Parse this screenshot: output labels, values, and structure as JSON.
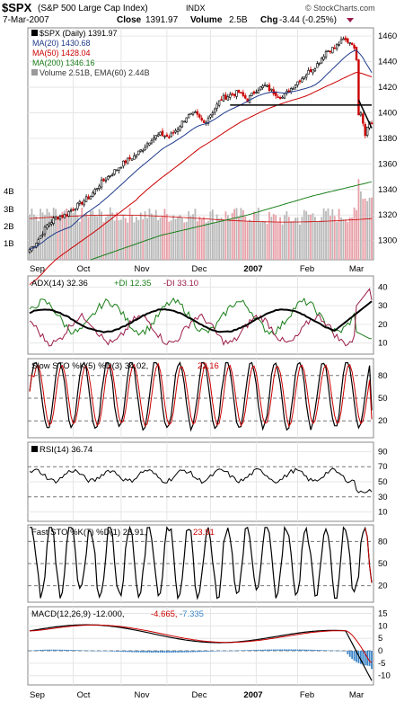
{
  "header": {
    "symbol": "$SPX",
    "name": "(S&P 500 Large Cap Index)",
    "exchange": "INDX",
    "brand": "© StockCharts.com",
    "date": "7-Mar-2007",
    "close_label": "Close",
    "close": "1391.97",
    "volume_label": "Volume",
    "volume": "2.5B",
    "chg_label": "Chg",
    "chg": "-3.44 (-0.25%)"
  },
  "colors": {
    "price": "#000000",
    "up": "#000000",
    "down": "#cc0000",
    "ma20": "#1f3a8a",
    "ma50": "#cc0000",
    "ma200": "#1a7f1a",
    "vol_up": "#b9b9b9",
    "vol_down": "#e8a0a8",
    "grid": "#e6e6e6",
    "histogram": "#3a84c7",
    "plus_di": "#1a7f1a",
    "minus_di": "#9b1b4a"
  },
  "x_axis": [
    "Sep",
    "Oct",
    "Nov",
    "Dec",
    "2007",
    "Feb",
    "Mar"
  ],
  "panels": {
    "adx": {
      "legend_prefix": "ADX(14) 32.36",
      "legend_plus": "+DI 12.35",
      "legend_minus": "-DI 33.10"
    },
    "slow_sto": {
      "legend_prefix": "Slow STO %K(5) %D(3) 34.02,",
      "legend_value": "22.16"
    },
    "rsi": {
      "legend": "RSI(14) 36.74"
    },
    "fast_sto": {
      "legend_prefix": "Fast STO %K(7) %D(1) 23.91,",
      "legend_value": "23.91"
    },
    "macd": {
      "legend_prefix": "MACD(12,26,9) -12.000,",
      "legend_signal": "-4.665,",
      "legend_hist": "-7.335"
    }
  },
  "chart_data": [
    {
      "type": "candlestick",
      "title": "$SPX (Daily) 1391.97",
      "legend": [
        {
          "name": "$SPX (Daily) 1391.97"
        },
        {
          "name": "MA(20) 1430.68"
        },
        {
          "name": "MA(50) 1428.04"
        },
        {
          "name": "MA(200) 1346.16"
        },
        {
          "name": "Volume 2.51B, EMA(60) 2.44B"
        }
      ],
      "ylim": [
        1285,
        1465
      ],
      "y_ticks": [
        1300,
        1320,
        1340,
        1360,
        1380,
        1400,
        1420,
        1440,
        1460
      ],
      "volume_ticks": [
        "1B",
        "2B",
        "3B",
        "4B"
      ],
      "close_path": [
        [
          0,
          1293
        ],
        [
          4,
          1301
        ],
        [
          8,
          1312
        ],
        [
          12,
          1318
        ],
        [
          16,
          1320
        ],
        [
          20,
          1325
        ],
        [
          24,
          1330
        ],
        [
          28,
          1335
        ],
        [
          32,
          1344
        ],
        [
          36,
          1350
        ],
        [
          40,
          1356
        ],
        [
          44,
          1362
        ],
        [
          48,
          1366
        ],
        [
          52,
          1372
        ],
        [
          56,
          1380
        ],
        [
          60,
          1383
        ],
        [
          64,
          1381
        ],
        [
          68,
          1388
        ],
        [
          72,
          1397
        ],
        [
          76,
          1399
        ],
        [
          80,
          1392
        ],
        [
          84,
          1401
        ],
        [
          88,
          1411
        ],
        [
          92,
          1414
        ],
        [
          96,
          1416
        ],
        [
          100,
          1410
        ],
        [
          104,
          1418
        ],
        [
          108,
          1421
        ],
        [
          112,
          1416
        ],
        [
          116,
          1412
        ],
        [
          120,
          1419
        ],
        [
          124,
          1426
        ],
        [
          128,
          1432
        ],
        [
          132,
          1438
        ],
        [
          136,
          1448
        ],
        [
          140,
          1451
        ],
        [
          144,
          1457
        ],
        [
          148,
          1455
        ],
        [
          150,
          1443
        ],
        [
          151,
          1400
        ],
        [
          152,
          1401
        ],
        [
          154,
          1384
        ],
        [
          156,
          1393
        ],
        [
          157,
          1392
        ]
      ],
      "trendline_horizontal": 1406,
      "trendline_down": [
        [
          151,
          1410
        ],
        [
          157,
          1388
        ]
      ],
      "ma200_path": [
        [
          28,
          1285
        ],
        [
          60,
          1304
        ],
        [
          100,
          1320
        ],
        [
          130,
          1335
        ],
        [
          157,
          1346
        ]
      ]
    },
    {
      "type": "line",
      "name": "ADX(14)",
      "ylim": [
        5,
        45
      ],
      "y_ticks": [
        10,
        20,
        30,
        40
      ],
      "values": {
        "adx": 32.36,
        "plus_di": 12.35,
        "minus_di": 33.1
      }
    },
    {
      "type": "line",
      "name": "Slow STO",
      "ylim": [
        0,
        100
      ],
      "y_ticks": [
        20,
        50,
        80
      ],
      "values": {
        "k": 34.02,
        "d": 22.16
      }
    },
    {
      "type": "line",
      "name": "RSI(14)",
      "ylim": [
        0,
        100
      ],
      "y_ticks": [
        10,
        30,
        50,
        70,
        90
      ],
      "values": {
        "rsi": 36.74
      }
    },
    {
      "type": "line",
      "name": "Fast STO",
      "ylim": [
        0,
        100
      ],
      "y_ticks": [
        20,
        50,
        80
      ],
      "values": {
        "k": 23.91,
        "d": 23.91
      }
    },
    {
      "type": "line+bar",
      "name": "MACD(12,26,9)",
      "ylim": [
        -13,
        17
      ],
      "y_ticks": [
        -10,
        -5,
        0,
        5,
        10,
        15
      ],
      "values": {
        "macd": -12.0,
        "signal": -4.665,
        "histogram": -7.335
      }
    }
  ]
}
